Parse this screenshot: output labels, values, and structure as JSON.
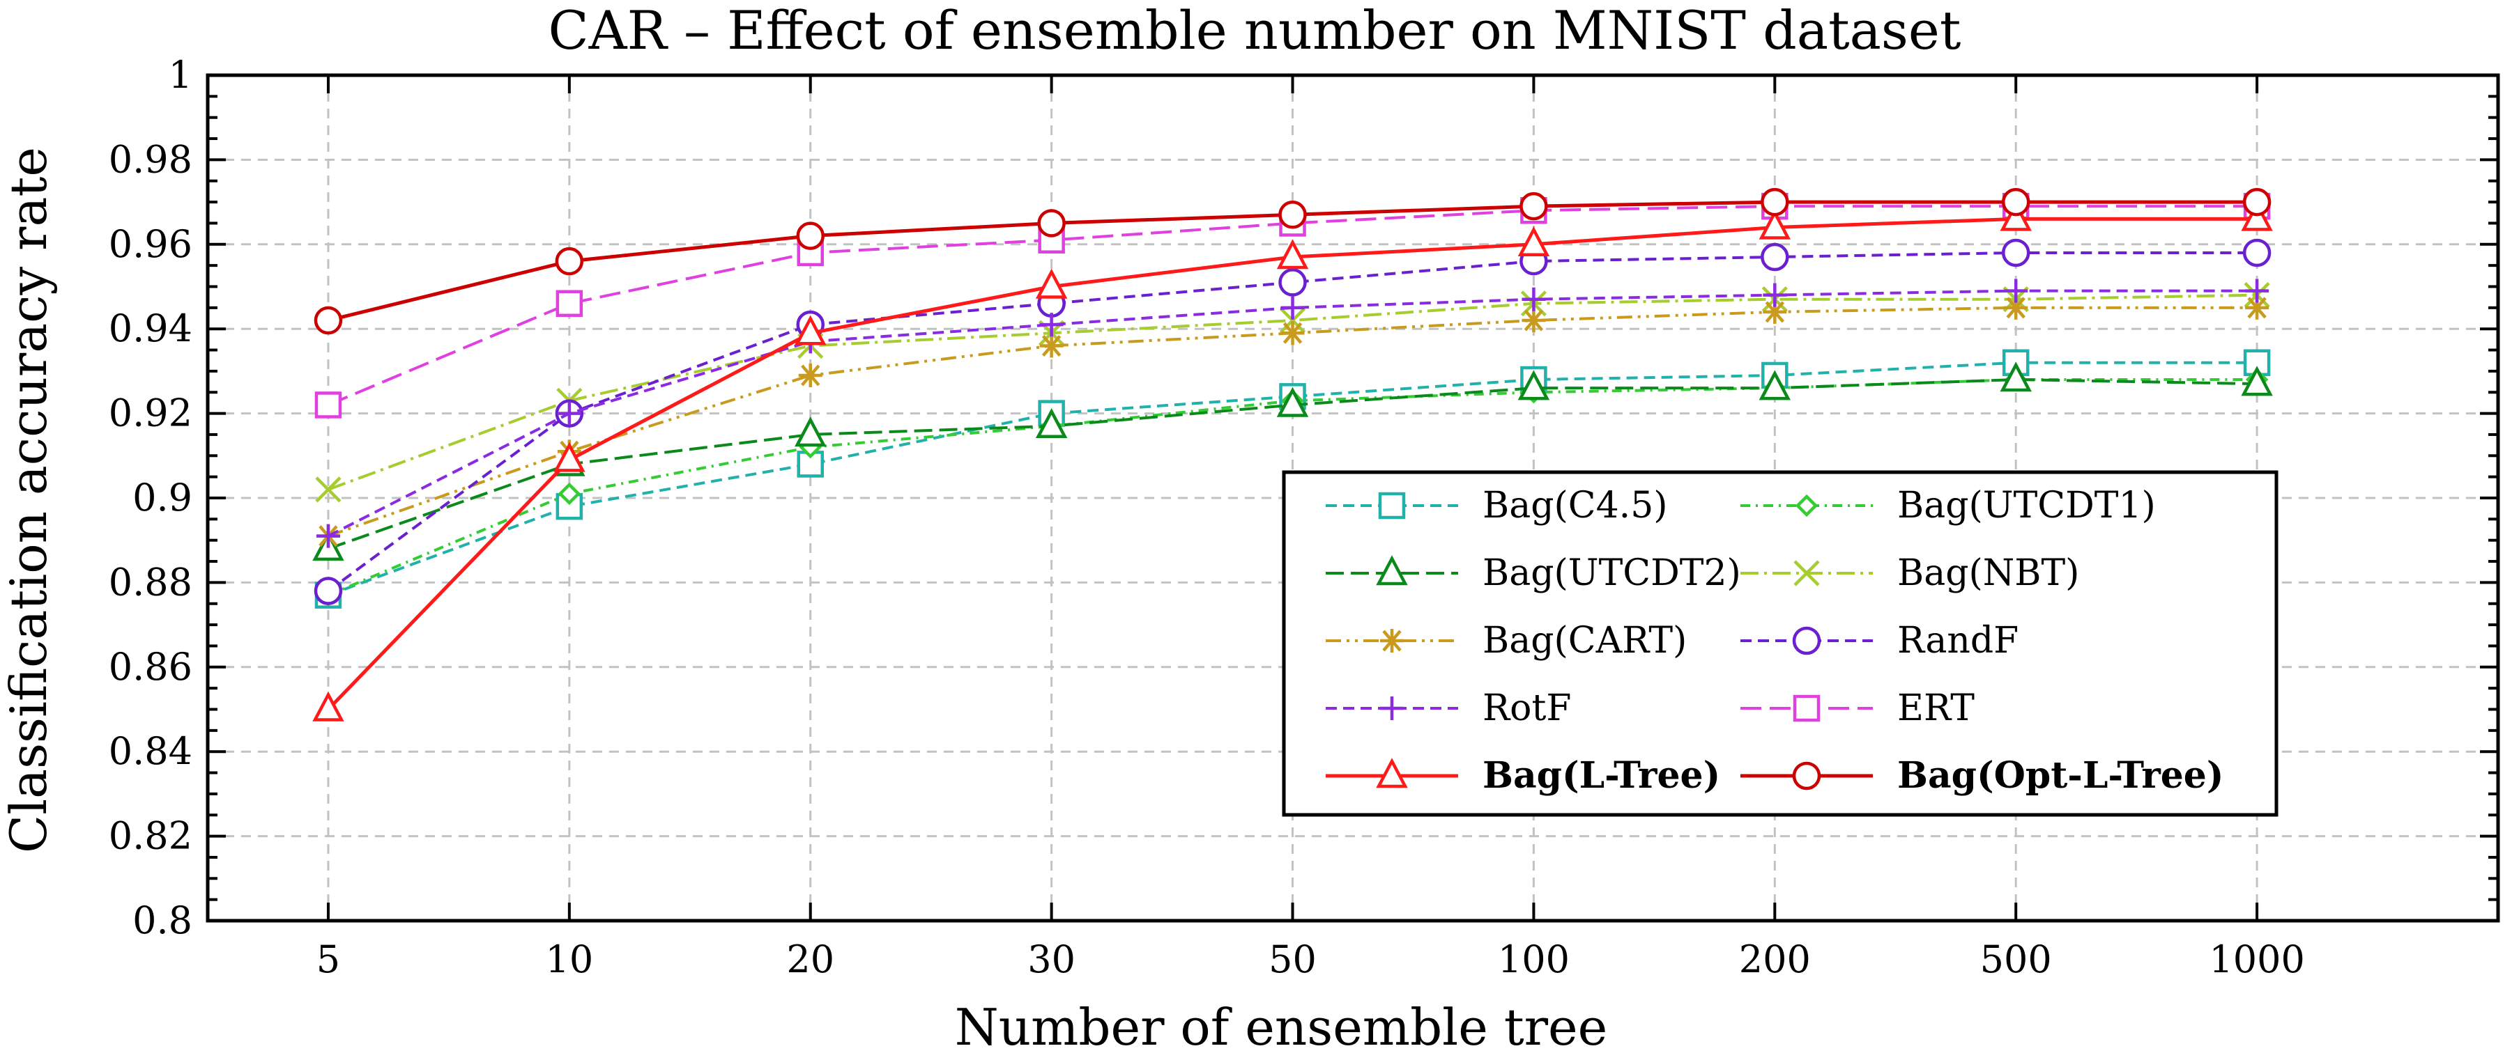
{
  "chart_data": {
    "type": "line",
    "title": "CAR – Effect of ensemble number on MNIST dataset",
    "xlabel": "Number of ensemble tree",
    "ylabel": "Classification accuracy rate",
    "categories": [
      "5",
      "10",
      "20",
      "30",
      "50",
      "100",
      "200",
      "500",
      "1000"
    ],
    "ylim": [
      0.8,
      1.0
    ],
    "yticks": [
      0.8,
      0.82,
      0.84,
      0.86,
      0.88,
      0.9,
      0.92,
      0.94,
      0.96,
      0.98,
      1
    ],
    "ytick_labels": [
      "0.8",
      "0.82",
      "0.84",
      "0.86",
      "0.88",
      "0.9",
      "0.92",
      "0.94",
      "0.96",
      "0.98",
      "1"
    ],
    "grid": true,
    "legend_position": "lower-right",
    "series": [
      {
        "name": "Bag(C4.5)",
        "color": "#20b2aa",
        "dash": "16 9",
        "marker": "square",
        "bold": false,
        "values": [
          0.877,
          0.898,
          0.908,
          0.92,
          0.924,
          0.928,
          0.929,
          0.932,
          0.932
        ]
      },
      {
        "name": "Bag(UTCDT1)",
        "color": "#33cc33",
        "dash": "14 8 3 8",
        "marker": "diamond",
        "bold": false,
        "values": [
          0.877,
          0.901,
          0.912,
          0.917,
          0.923,
          0.925,
          0.926,
          0.928,
          0.928
        ]
      },
      {
        "name": "Bag(UTCDT2)",
        "color": "#0a8a1a",
        "dash": "26 10",
        "marker": "triangle",
        "bold": false,
        "values": [
          0.888,
          0.908,
          0.915,
          0.917,
          0.922,
          0.926,
          0.926,
          0.928,
          0.927
        ]
      },
      {
        "name": "Bag(NBT)",
        "color": "#a6cc2e",
        "dash": "26 8 4 8",
        "marker": "x",
        "bold": false,
        "values": [
          0.902,
          0.923,
          0.936,
          0.939,
          0.942,
          0.946,
          0.947,
          0.947,
          0.948
        ]
      },
      {
        "name": "Bag(CART)",
        "color": "#c89a1e",
        "dash": "22 8 4 8 4 8",
        "marker": "asterisk",
        "bold": false,
        "values": [
          0.891,
          0.911,
          0.929,
          0.936,
          0.939,
          0.942,
          0.944,
          0.945,
          0.945
        ]
      },
      {
        "name": "RandF",
        "color": "#6a1fd0",
        "dash": "16 9",
        "marker": "circle",
        "bold": false,
        "values": [
          0.878,
          0.92,
          0.941,
          0.946,
          0.951,
          0.956,
          0.957,
          0.958,
          0.958
        ]
      },
      {
        "name": "RotF",
        "color": "#8a2be2",
        "dash": "16 9",
        "marker": "plus",
        "bold": false,
        "values": [
          0.891,
          0.92,
          0.937,
          0.941,
          0.945,
          0.947,
          0.948,
          0.949,
          0.949
        ]
      },
      {
        "name": "ERT",
        "color": "#e040e0",
        "dash": "30 12",
        "marker": "square",
        "bold": false,
        "values": [
          0.922,
          0.946,
          0.958,
          0.961,
          0.965,
          0.968,
          0.969,
          0.969,
          0.969
        ]
      },
      {
        "name": "Bag(L-Tree)",
        "color": "#ff1a1a",
        "dash": "",
        "marker": "triangle",
        "bold": true,
        "values": [
          0.85,
          0.909,
          0.939,
          0.95,
          0.957,
          0.96,
          0.964,
          0.966,
          0.966
        ]
      },
      {
        "name": "Bag(Opt-L-Tree)",
        "color": "#cc0000",
        "dash": "",
        "marker": "circle",
        "bold": true,
        "values": [
          0.942,
          0.956,
          0.962,
          0.965,
          0.967,
          0.969,
          0.97,
          0.97,
          0.97
        ]
      }
    ]
  }
}
